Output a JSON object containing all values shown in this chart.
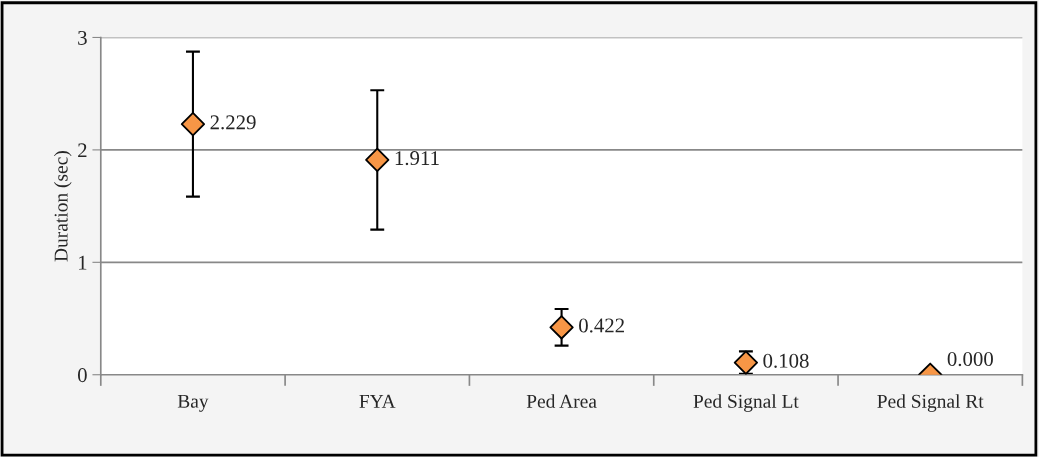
{
  "chart_data": {
    "type": "scatter",
    "ylabel": "Duration (sec)",
    "categories": [
      "Bay",
      "FYA",
      "Ped Area",
      "Ped Signal Lt",
      "Ped Signal Rt"
    ],
    "values": [
      2.229,
      1.911,
      0.422,
      0.108,
      0.0
    ],
    "errors": [
      0.645,
      0.62,
      0.163,
      0.1,
      null
    ],
    "value_labels": [
      "2.229",
      "1.911",
      "0.422",
      "0.108",
      "0.000"
    ],
    "color": "#f79646",
    "marker": "diamond",
    "ylim": [
      0,
      3
    ],
    "yticks": [
      0,
      1,
      2,
      3
    ],
    "grid": "y"
  }
}
